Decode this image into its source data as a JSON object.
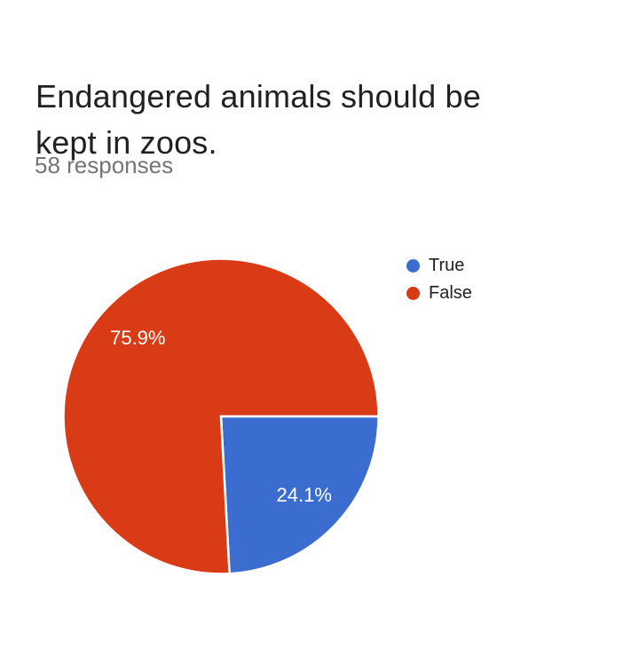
{
  "header": {
    "title": "Endangered animals should be kept in zoos.",
    "subtitle": "58 responses"
  },
  "chart_data": {
    "type": "pie",
    "title": "Endangered animals should be kept in zoos.",
    "subtitle": "58 responses",
    "total_responses": 58,
    "slices": [
      {
        "label": "True",
        "value": 14,
        "percent": 24.1,
        "percent_label": "24.1%",
        "color": "#3b6cd0"
      },
      {
        "label": "False",
        "value": 44,
        "percent": 75.9,
        "percent_label": "75.9%",
        "color": "#da3b17"
      }
    ],
    "start_angle_deg": 0,
    "direction": "clockwise",
    "slice_border_color": "#ffffff",
    "slice_label_color": "#ffffff",
    "legend_position": "right",
    "background_color": "#ffffff"
  },
  "legend": {
    "items": [
      {
        "label": "True",
        "color": "#3b6cd0"
      },
      {
        "label": "False",
        "color": "#da3b17"
      }
    ]
  }
}
